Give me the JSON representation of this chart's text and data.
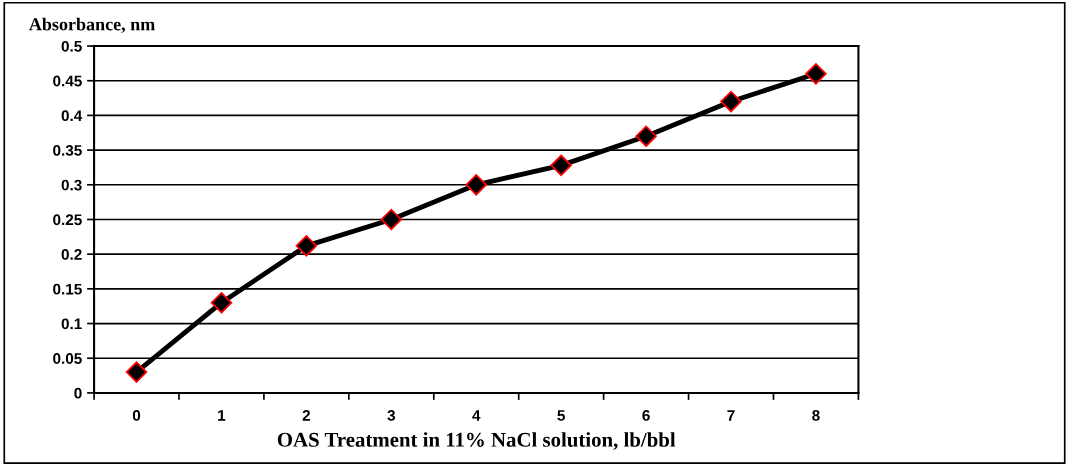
{
  "chart_data": {
    "type": "line",
    "xlabel": "OAS Treatment in 11% NaCl solution, lb/bbl",
    "ylabel": "Absorbance, nm",
    "categories": [
      "0",
      "1",
      "2",
      "3",
      "4",
      "5",
      "6",
      "7",
      "8"
    ],
    "series": [
      {
        "color": "#000000",
        "values": [
          0.03,
          0.13,
          0.212,
          0.25,
          0.3,
          0.328,
          0.37,
          0.42,
          0.46
        ]
      }
    ],
    "ylim": [
      0,
      0.5
    ],
    "yticks": [
      0,
      0.05,
      0.1,
      0.15,
      0.2,
      0.25,
      0.3,
      0.35,
      0.4,
      0.45,
      0.5
    ],
    "grid": "y",
    "marker": "diamond",
    "line_style": "solid"
  }
}
